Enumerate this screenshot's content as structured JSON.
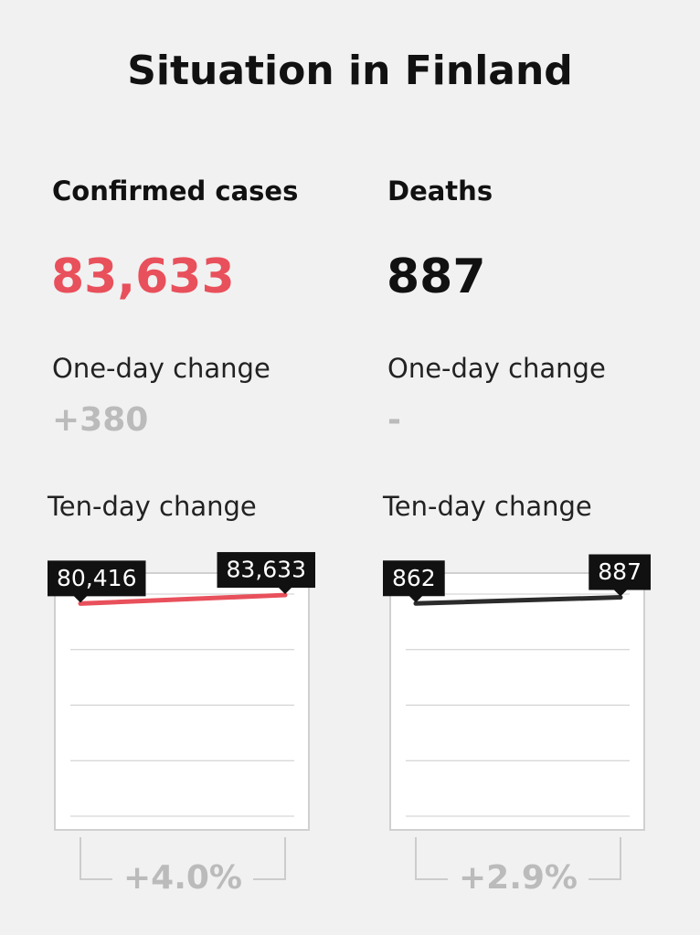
{
  "title": "Situation in Finland",
  "panels": [
    {
      "label": "Confirmed cases",
      "total": "83,633",
      "color": "#e8505b",
      "change_label": "One-day change",
      "change": "+380",
      "ten_day_label": "Ten-day change",
      "chart": {
        "type": "line",
        "color": "#e8505b",
        "values": [
          80416,
          83633
        ],
        "value_labels": [
          "80,416",
          "83,633"
        ],
        "ylim": [
          0,
          84000
        ],
        "yticks": [
          0,
          21000,
          42000,
          63000,
          84000
        ],
        "grid": true
      },
      "ten_day_change": "+4.0%"
    },
    {
      "label": "Deaths",
      "total": 887,
      "color": "#111111",
      "change_label": "One-day change",
      "change": "-",
      "ten_day_label": "Ten-day change",
      "chart": {
        "type": "line",
        "color": "#2b2b2b",
        "values": [
          862,
          887
        ],
        "value_labels": [
          "862",
          "887"
        ],
        "ylim": [
          0,
          900
        ],
        "yticks": [
          0,
          225,
          450,
          675,
          900
        ],
        "grid": true
      },
      "ten_day_change": "+2.9%"
    }
  ]
}
